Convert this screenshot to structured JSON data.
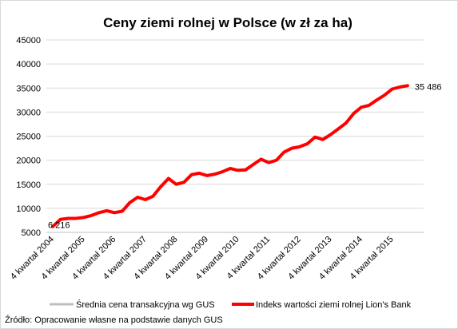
{
  "chart_data": {
    "type": "line",
    "title": "Ceny ziemi rolnej w Polsce (w zł za ha)",
    "xlabel": "",
    "ylabel": "",
    "ylim": [
      5000,
      45000
    ],
    "yticks": [
      5000,
      10000,
      15000,
      20000,
      25000,
      30000,
      35000,
      40000,
      45000
    ],
    "ytick_labels": [
      "5000",
      "10000",
      "15000",
      "20000",
      "25000",
      "30000",
      "35000",
      "40000",
      "45000"
    ],
    "grid": true,
    "legend_position": "bottom",
    "quarters_per_label": 4,
    "x_labels": [
      "4 kwartał 2004",
      "4 kwartał 2005",
      "4 kwartał 2006",
      "4 kwartał 2007",
      "4 kwartał 2008",
      "4 kwartał 2009",
      "4 kwartał 2010",
      "4 kwartał 2011",
      "4 kwartał 2012",
      "4 kwartał 2013",
      "4 kwartał 2014",
      "4 kwartał 2015"
    ],
    "series": [
      {
        "name": "Średnia cena transakcyjna wg GUS",
        "color": "#bfbfbf",
        "values": []
      },
      {
        "name": "Indeks wartości ziemi rolnej Lion's Bank",
        "color": "#ff0000",
        "values": [
          6216,
          7700,
          7900,
          7900,
          8100,
          8500,
          9100,
          9500,
          9100,
          9400,
          11200,
          12300,
          11800,
          12500,
          14500,
          16200,
          15000,
          15400,
          17000,
          17300,
          16800,
          17100,
          17600,
          18300,
          17900,
          18000,
          19100,
          20200,
          19500,
          20000,
          21700,
          22500,
          22800,
          23400,
          24800,
          24300,
          25300,
          26500,
          27700,
          29700,
          31000,
          31400,
          32500,
          33500,
          34800,
          35200,
          35486
        ]
      }
    ],
    "annotations": [
      {
        "series": 1,
        "point": "first",
        "text": "6 216"
      },
      {
        "series": 1,
        "point": "last",
        "text": "35 486"
      }
    ]
  },
  "source_note": "Źródło: Opracowanie własne na podstawie danych GUS"
}
